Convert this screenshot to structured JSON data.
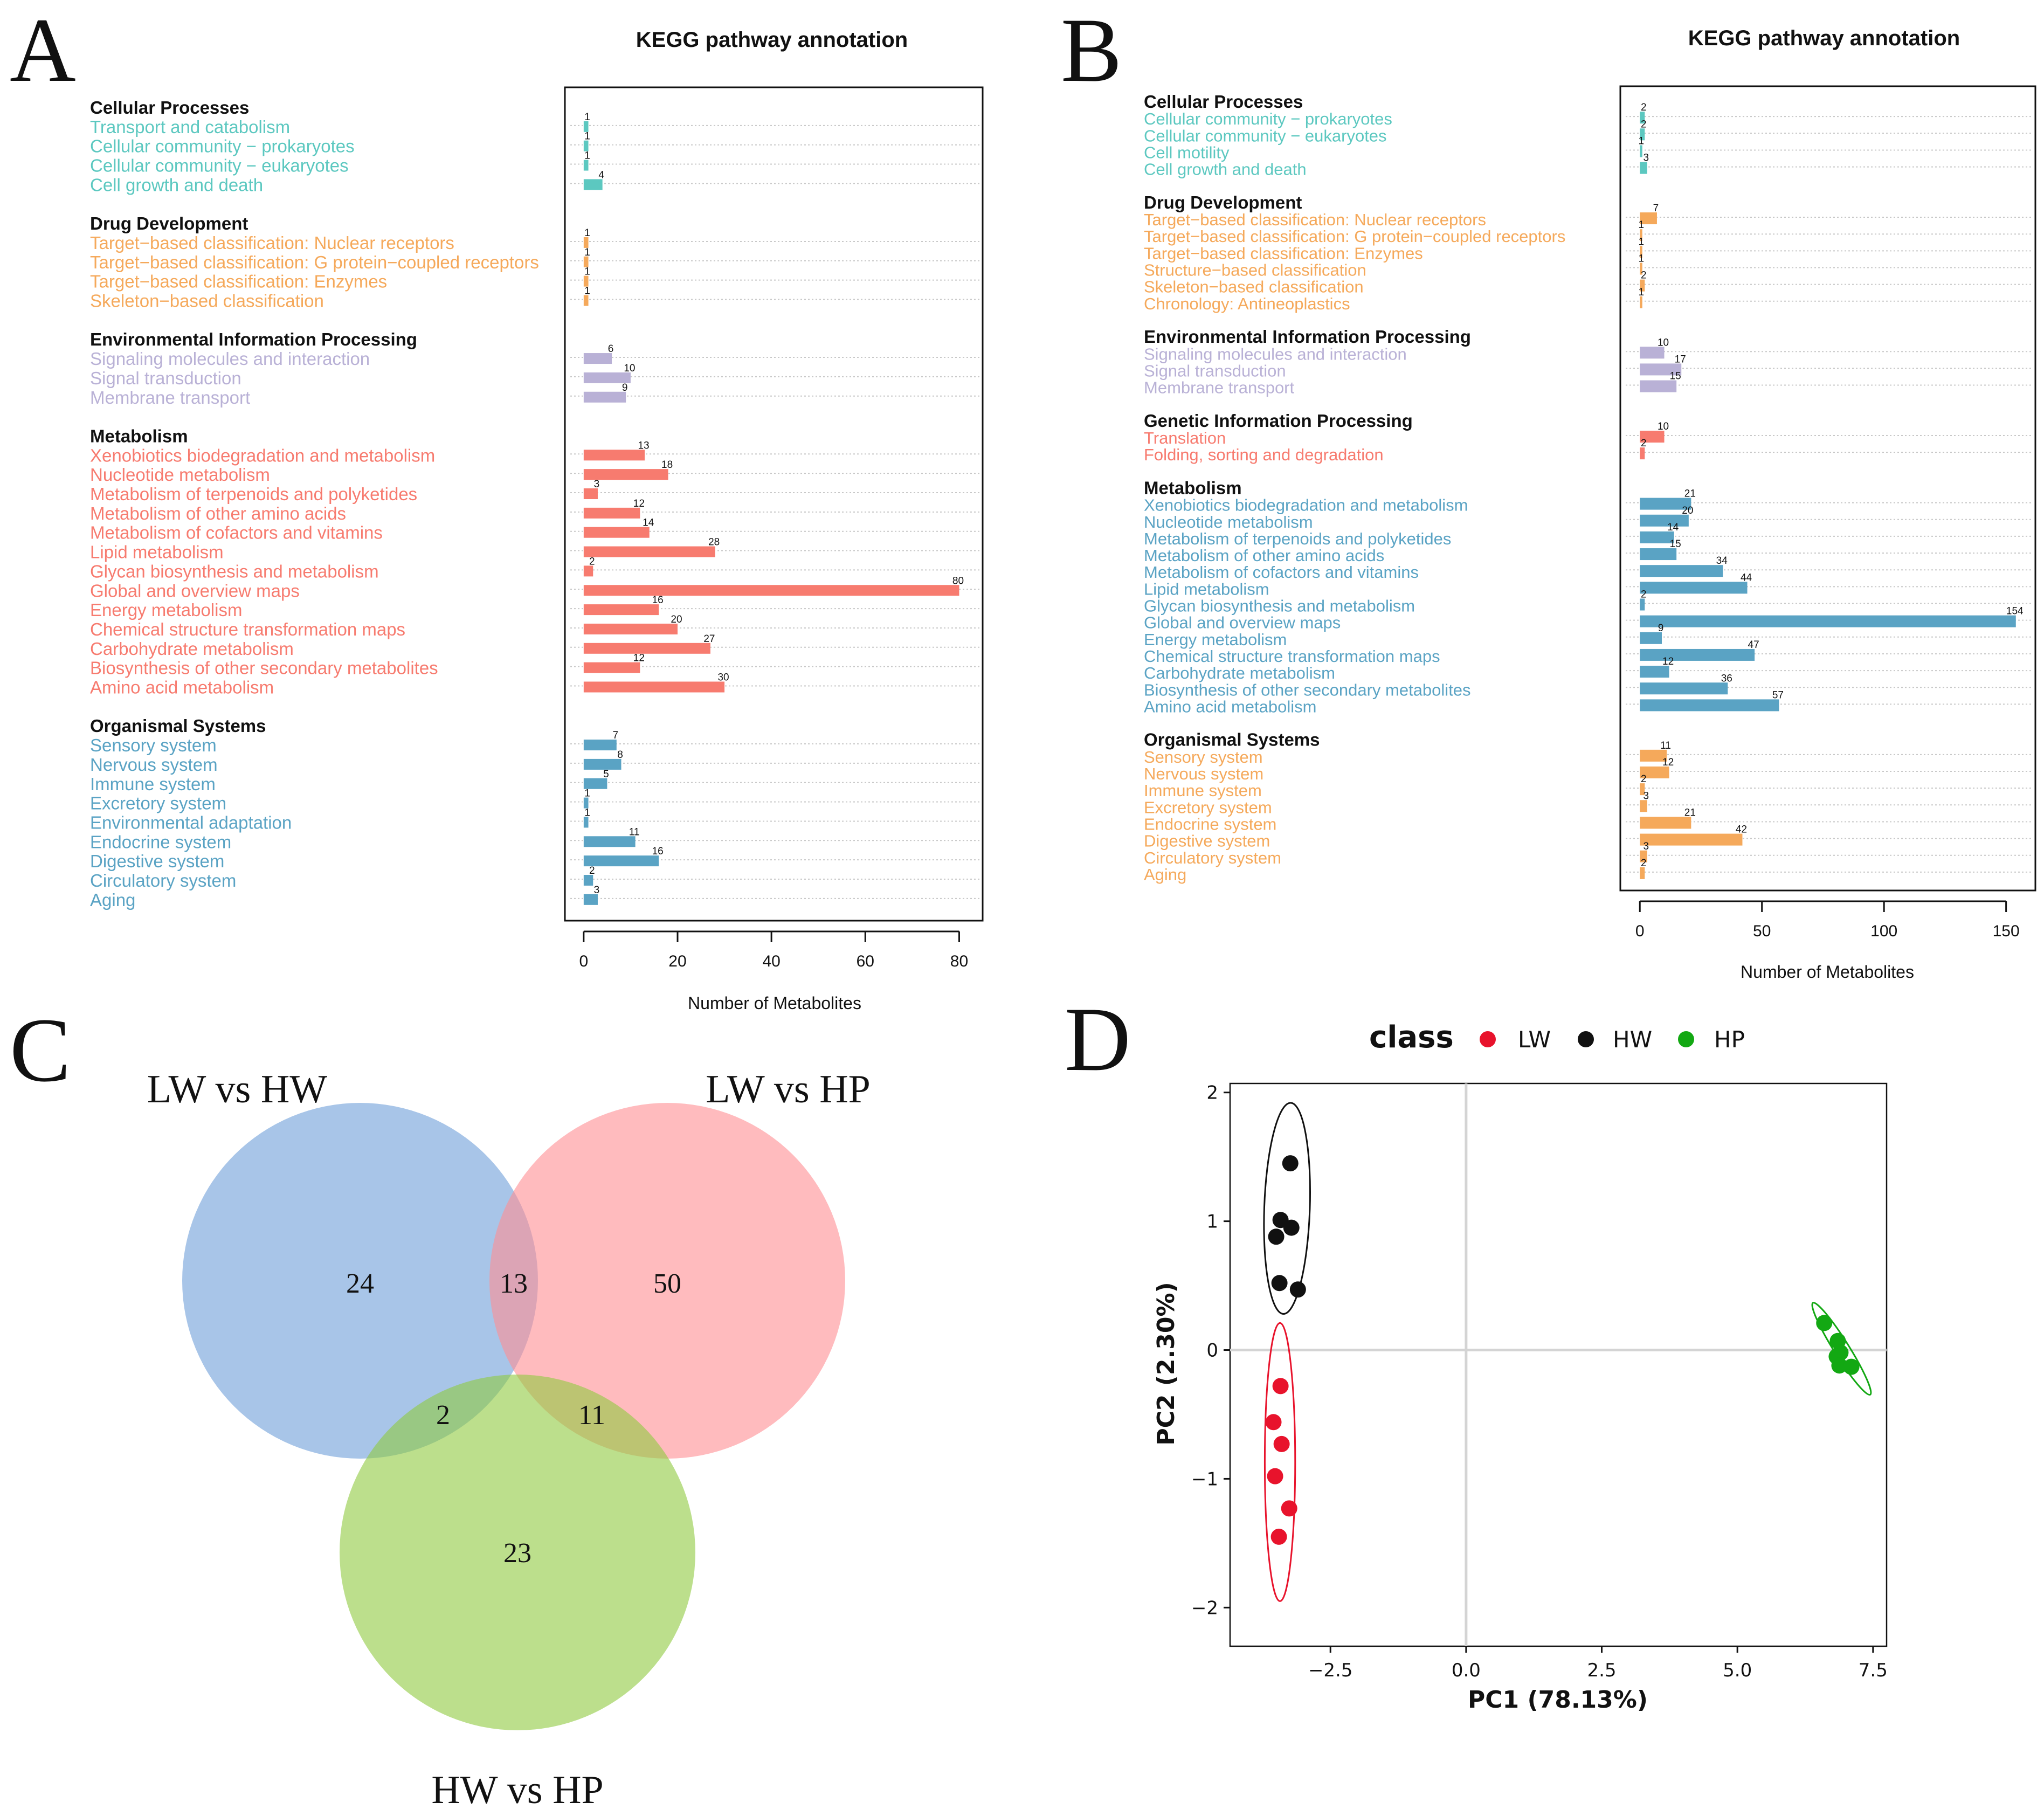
{
  "panels": [
    "A",
    "B",
    "C",
    "D"
  ],
  "colors": {
    "teal": "#5cc8c0",
    "orange": "#f5a95b",
    "lavender": "#b9b1d6",
    "salmon": "#f77b6f",
    "steel": "#5aa3c4",
    "venn_blue": "#6e9fd9",
    "venn_pink": "#ff8e93",
    "venn_green": "#8fc93f",
    "lw": "#e8132c",
    "hw": "#111111",
    "hp": "#13a813"
  },
  "chart_data": [
    {
      "type": "bar",
      "id": "A",
      "title": "KEGG pathway annotation",
      "xlabel": "Number of Metabolites",
      "xlim": [
        -4,
        85
      ],
      "xticks": [
        0,
        20,
        40,
        60,
        80
      ],
      "groups": [
        {
          "name": "Cellular Processes",
          "color": "teal",
          "items": [
            {
              "label": "Transport and catabolism",
              "value": 1
            },
            {
              "label": "Cellular community − prokaryotes",
              "value": 1
            },
            {
              "label": "Cellular community − eukaryotes",
              "value": 1
            },
            {
              "label": "Cell growth and death",
              "value": 4
            }
          ]
        },
        {
          "name": "Drug Development",
          "color": "orange",
          "items": [
            {
              "label": "Target−based classification: Nuclear receptors",
              "value": 1
            },
            {
              "label": "Target−based classification: G protein−coupled receptors",
              "value": 1
            },
            {
              "label": "Target−based classification: Enzymes",
              "value": 1
            },
            {
              "label": "Skeleton−based classification",
              "value": 1
            }
          ]
        },
        {
          "name": "Environmental Information Processing",
          "color": "lavender",
          "items": [
            {
              "label": "Signaling molecules and interaction",
              "value": 6
            },
            {
              "label": "Signal transduction",
              "value": 10
            },
            {
              "label": "Membrane transport",
              "value": 9
            }
          ]
        },
        {
          "name": "Metabolism",
          "color": "salmon",
          "items": [
            {
              "label": "Xenobiotics biodegradation and metabolism",
              "value": 13
            },
            {
              "label": "Nucleotide metabolism",
              "value": 18
            },
            {
              "label": "Metabolism of terpenoids and polyketides",
              "value": 3
            },
            {
              "label": "Metabolism of other amino acids",
              "value": 12
            },
            {
              "label": "Metabolism of cofactors and vitamins",
              "value": 14
            },
            {
              "label": "Lipid metabolism",
              "value": 28
            },
            {
              "label": "Glycan biosynthesis and metabolism",
              "value": 2
            },
            {
              "label": "Global and overview maps",
              "value": 80
            },
            {
              "label": "Energy metabolism",
              "value": 16
            },
            {
              "label": "Chemical structure transformation maps",
              "value": 20
            },
            {
              "label": "Carbohydrate metabolism",
              "value": 27
            },
            {
              "label": "Biosynthesis of other secondary metabolites",
              "value": 12
            },
            {
              "label": "Amino acid metabolism",
              "value": 30
            }
          ]
        },
        {
          "name": "Organismal Systems",
          "color": "steel",
          "items": [
            {
              "label": "Sensory system",
              "value": 7
            },
            {
              "label": "Nervous system",
              "value": 8
            },
            {
              "label": "Immune system",
              "value": 5
            },
            {
              "label": "Excretory system",
              "value": 1
            },
            {
              "label": "Environmental adaptation",
              "value": 1
            },
            {
              "label": "Endocrine system",
              "value": 11
            },
            {
              "label": "Digestive system",
              "value": 16
            },
            {
              "label": "Circulatory system",
              "value": 2
            },
            {
              "label": "Aging",
              "value": 3
            }
          ]
        }
      ]
    },
    {
      "type": "bar",
      "id": "B",
      "title": "KEGG pathway annotation",
      "xlabel": "Number of Metabolites",
      "xlim": [
        -8,
        162
      ],
      "xticks": [
        0,
        50,
        100,
        150
      ],
      "groups": [
        {
          "name": "Cellular Processes",
          "color": "teal",
          "items": [
            {
              "label": "Cellular community − prokaryotes",
              "value": 2
            },
            {
              "label": "Cellular community − eukaryotes",
              "value": 2
            },
            {
              "label": "Cell motility",
              "value": 1
            },
            {
              "label": "Cell growth and death",
              "value": 3
            }
          ]
        },
        {
          "name": "Drug Development",
          "color": "orange",
          "items": [
            {
              "label": "Target−based classification: Nuclear receptors",
              "value": 7
            },
            {
              "label": "Target−based classification: G protein−coupled receptors",
              "value": 1
            },
            {
              "label": "Target−based classification: Enzymes",
              "value": 1
            },
            {
              "label": "Structure−based classification",
              "value": 1
            },
            {
              "label": "Skeleton−based classification",
              "value": 2
            },
            {
              "label": "Chronology: Antineoplastics",
              "value": 1
            }
          ]
        },
        {
          "name": "Environmental Information Processing",
          "color": "lavender",
          "items": [
            {
              "label": "Signaling molecules and interaction",
              "value": 10
            },
            {
              "label": "Signal transduction",
              "value": 17
            },
            {
              "label": "Membrane transport",
              "value": 15
            }
          ]
        },
        {
          "name": "Genetic Information Processing",
          "color": "salmon",
          "items": [
            {
              "label": "Translation",
              "value": 10
            },
            {
              "label": "Folding, sorting and degradation",
              "value": 2
            }
          ]
        },
        {
          "name": "Metabolism",
          "color": "steel",
          "items": [
            {
              "label": "Xenobiotics biodegradation and metabolism",
              "value": 21
            },
            {
              "label": "Nucleotide metabolism",
              "value": 20
            },
            {
              "label": "Metabolism of terpenoids and polyketides",
              "value": 14
            },
            {
              "label": "Metabolism of other amino acids",
              "value": 15
            },
            {
              "label": "Metabolism of cofactors and vitamins",
              "value": 34
            },
            {
              "label": "Lipid metabolism",
              "value": 44
            },
            {
              "label": "Glycan biosynthesis and metabolism",
              "value": 2
            },
            {
              "label": "Global and overview maps",
              "value": 154
            },
            {
              "label": "Energy metabolism",
              "value": 9
            },
            {
              "label": "Chemical structure transformation maps",
              "value": 47
            },
            {
              "label": "Carbohydrate metabolism",
              "value": 12
            },
            {
              "label": "Biosynthesis of other secondary metabolites",
              "value": 36
            },
            {
              "label": "Amino acid metabolism",
              "value": 57
            }
          ]
        },
        {
          "name": "Organismal Systems",
          "color": "orange",
          "items": [
            {
              "label": "Sensory system",
              "value": 11
            },
            {
              "label": "Nervous system",
              "value": 12
            },
            {
              "label": "Immune system",
              "value": 2
            },
            {
              "label": "Excretory system",
              "value": 3
            },
            {
              "label": "Endocrine system",
              "value": 21
            },
            {
              "label": "Digestive system",
              "value": 42
            },
            {
              "label": "Circulatory system",
              "value": 3
            },
            {
              "label": "Aging",
              "value": 2
            }
          ]
        }
      ]
    },
    {
      "type": "venn",
      "id": "C",
      "sets": [
        "LW vs HW",
        "LW vs HP",
        "HW vs HP"
      ],
      "regions": {
        "only_LWvsHW": 24,
        "LWvsHW_and_LWvsHP": 13,
        "only_LWvsHP": 50,
        "LWvsHW_and_HWvsHP": 2,
        "LWvsHP_and_HWvsHP": 11,
        "only_HWvsHP": 23
      }
    },
    {
      "type": "scatter",
      "id": "D",
      "legend_title": "class",
      "classes": [
        "LW",
        "HW",
        "HP"
      ],
      "xlabel": "PC1 (78.13%)",
      "ylabel": "PC2 (2.30%)",
      "xlim": [
        -4.35,
        7.75
      ],
      "ylim": [
        -2.3,
        2.07
      ],
      "xticks": [
        -2.5,
        0.0,
        2.5,
        5.0,
        7.5
      ],
      "xtick_labels": [
        "−2.5",
        "0.0",
        "2.5",
        "5.0",
        "7.5"
      ],
      "yticks": [
        -2,
        -1,
        0,
        1,
        2
      ],
      "ytick_labels": [
        "−2",
        "−1",
        "0",
        "1",
        "2"
      ],
      "points": {
        "LW": [
          [
            -3.42,
            -0.28
          ],
          [
            -3.55,
            -0.56
          ],
          [
            -3.4,
            -0.73
          ],
          [
            -3.52,
            -0.98
          ],
          [
            -3.26,
            -1.23
          ],
          [
            -3.45,
            -1.45
          ]
        ],
        "HW": [
          [
            -3.24,
            1.45
          ],
          [
            -3.42,
            1.01
          ],
          [
            -3.22,
            0.95
          ],
          [
            -3.5,
            0.88
          ],
          [
            -3.44,
            0.52
          ],
          [
            -3.1,
            0.47
          ]
        ],
        "HP": [
          [
            6.6,
            0.21
          ],
          [
            6.85,
            0.07
          ],
          [
            6.9,
            -0.02
          ],
          [
            6.83,
            -0.05
          ],
          [
            6.88,
            -0.12
          ],
          [
            7.1,
            -0.13
          ]
        ]
      },
      "ellipses": {
        "LW": {
          "cx": -3.43,
          "cy": -0.87,
          "rx": 0.28,
          "ry": 1.08,
          "angle": 90
        },
        "HW": {
          "cx": -3.3,
          "cy": 1.1,
          "rx": 0.42,
          "ry": 0.82,
          "angle": 92
        },
        "HP": {
          "cx": 6.92,
          "cy": 0.01,
          "rx": 0.14,
          "ry": 0.42,
          "angle": 58
        }
      }
    }
  ]
}
